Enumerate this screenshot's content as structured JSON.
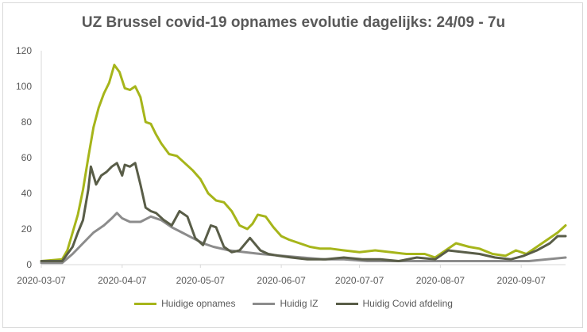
{
  "chart_data": {
    "type": "line",
    "title": "UZ Brussel covid-19 opnames evolutie dagelijks: 24/09 - 7u",
    "xlabel": "",
    "ylabel": "",
    "ylim": [
      0,
      120
    ],
    "yticks": [
      0,
      20,
      40,
      60,
      80,
      100,
      120
    ],
    "xticks": [
      "2020-03-07",
      "2020-04-07",
      "2020-05-07",
      "2020-06-07",
      "2020-07-07",
      "2020-08-07",
      "2020-09-07"
    ],
    "xrange": [
      "2020-03-07",
      "2020-09-24"
    ],
    "grid": false,
    "legend_position": "bottom",
    "colors": {
      "opnames": "#a6b51a",
      "iz": "#8c8c8c",
      "afdeling": "#595d48",
      "axis": "#d9d9d9"
    },
    "series": [
      {
        "name": "Huidige opnames",
        "x": [
          "2020-03-07",
          "2020-03-15",
          "2020-03-17",
          "2020-03-19",
          "2020-03-21",
          "2020-03-23",
          "2020-03-25",
          "2020-03-27",
          "2020-03-29",
          "2020-03-31",
          "2020-04-02",
          "2020-04-04",
          "2020-04-06",
          "2020-04-08",
          "2020-04-10",
          "2020-04-12",
          "2020-04-14",
          "2020-04-16",
          "2020-04-18",
          "2020-04-20",
          "2020-04-22",
          "2020-04-25",
          "2020-04-28",
          "2020-05-01",
          "2020-05-04",
          "2020-05-07",
          "2020-05-10",
          "2020-05-13",
          "2020-05-16",
          "2020-05-19",
          "2020-05-22",
          "2020-05-25",
          "2020-05-27",
          "2020-05-29",
          "2020-06-01",
          "2020-06-04",
          "2020-06-07",
          "2020-06-10",
          "2020-06-14",
          "2020-06-18",
          "2020-06-22",
          "2020-06-26",
          "2020-07-01",
          "2020-07-07",
          "2020-07-13",
          "2020-07-19",
          "2020-07-25",
          "2020-08-01",
          "2020-08-05",
          "2020-08-09",
          "2020-08-13",
          "2020-08-18",
          "2020-08-22",
          "2020-08-27",
          "2020-09-01",
          "2020-09-05",
          "2020-09-09",
          "2020-09-13",
          "2020-09-17",
          "2020-09-21",
          "2020-09-24"
        ],
        "values": [
          2,
          3,
          8,
          18,
          28,
          42,
          60,
          77,
          88,
          96,
          102,
          112,
          108,
          99,
          98,
          100,
          94,
          80,
          79,
          73,
          68,
          62,
          61,
          57,
          53,
          48,
          40,
          36,
          35,
          30,
          22,
          20,
          23,
          28,
          27,
          21,
          16,
          14,
          12,
          10,
          9,
          9,
          8,
          7,
          8,
          7,
          6,
          6,
          4,
          8,
          12,
          10,
          9,
          6,
          5,
          8,
          6,
          10,
          14,
          18,
          22
        ]
      },
      {
        "name": "Huidig IZ",
        "x": [
          "2020-03-07",
          "2020-03-15",
          "2020-03-19",
          "2020-03-23",
          "2020-03-27",
          "2020-03-31",
          "2020-04-03",
          "2020-04-05",
          "2020-04-07",
          "2020-04-10",
          "2020-04-14",
          "2020-04-18",
          "2020-04-22",
          "2020-04-26",
          "2020-04-30",
          "2020-05-04",
          "2020-05-08",
          "2020-05-12",
          "2020-05-18",
          "2020-05-24",
          "2020-05-30",
          "2020-06-07",
          "2020-06-15",
          "2020-06-23",
          "2020-07-01",
          "2020-07-10",
          "2020-07-20",
          "2020-08-01",
          "2020-08-10",
          "2020-08-20",
          "2020-09-01",
          "2020-09-10",
          "2020-09-17",
          "2020-09-24"
        ],
        "values": [
          1,
          1,
          6,
          12,
          18,
          22,
          26,
          29,
          26,
          24,
          24,
          27,
          25,
          21,
          18,
          15,
          12,
          10,
          8,
          7,
          6,
          5,
          4,
          3,
          3,
          2,
          2,
          2,
          2,
          2,
          2,
          2,
          3,
          4
        ]
      },
      {
        "name": "Huidig Covid afdeling",
        "x": [
          "2020-03-07",
          "2020-03-15",
          "2020-03-19",
          "2020-03-21",
          "2020-03-23",
          "2020-03-25",
          "2020-03-26",
          "2020-03-28",
          "2020-03-30",
          "2020-04-01",
          "2020-04-03",
          "2020-04-05",
          "2020-04-07",
          "2020-04-08",
          "2020-04-10",
          "2020-04-12",
          "2020-04-14",
          "2020-04-16",
          "2020-04-18",
          "2020-04-20",
          "2020-04-23",
          "2020-04-26",
          "2020-04-29",
          "2020-05-02",
          "2020-05-05",
          "2020-05-08",
          "2020-05-11",
          "2020-05-13",
          "2020-05-16",
          "2020-05-19",
          "2020-05-22",
          "2020-05-26",
          "2020-05-30",
          "2020-06-02",
          "2020-06-06",
          "2020-06-11",
          "2020-06-17",
          "2020-06-24",
          "2020-07-01",
          "2020-07-08",
          "2020-07-15",
          "2020-07-22",
          "2020-07-29",
          "2020-08-05",
          "2020-08-10",
          "2020-08-16",
          "2020-08-22",
          "2020-08-28",
          "2020-09-03",
          "2020-09-08",
          "2020-09-13",
          "2020-09-18",
          "2020-09-21",
          "2020-09-24"
        ],
        "values": [
          2,
          2,
          10,
          18,
          25,
          42,
          55,
          45,
          50,
          52,
          55,
          57,
          50,
          56,
          55,
          57,
          45,
          32,
          30,
          29,
          25,
          22,
          30,
          27,
          15,
          11,
          22,
          21,
          10,
          7,
          8,
          15,
          8,
          6,
          5,
          4,
          3,
          3,
          4,
          3,
          3,
          2,
          4,
          3,
          8,
          7,
          6,
          4,
          3,
          5,
          8,
          12,
          16,
          16
        ]
      }
    ]
  }
}
